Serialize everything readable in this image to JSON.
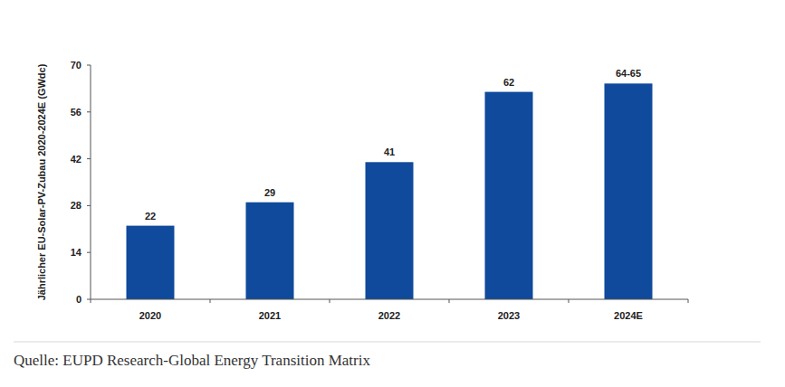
{
  "chart_data": {
    "type": "bar",
    "y_label": "Jährlicher EU-Solar-PV-Zubau 2020-2024E (GWdc)",
    "source": "Quelle: EUPD Research-Global Energy Transition Matrix",
    "categories": [
      "2020",
      "2021",
      "2022",
      "2023",
      "2024E"
    ],
    "values": [
      22,
      29,
      41,
      62,
      64.5
    ],
    "value_labels": [
      "22",
      "29",
      "41",
      "62",
      "64-65"
    ],
    "color": "#0f4a9c",
    "ylim": [
      0,
      70
    ],
    "yticks": [
      0,
      14,
      28,
      42,
      56,
      70
    ],
    "grid": false,
    "data_labels": true
  }
}
